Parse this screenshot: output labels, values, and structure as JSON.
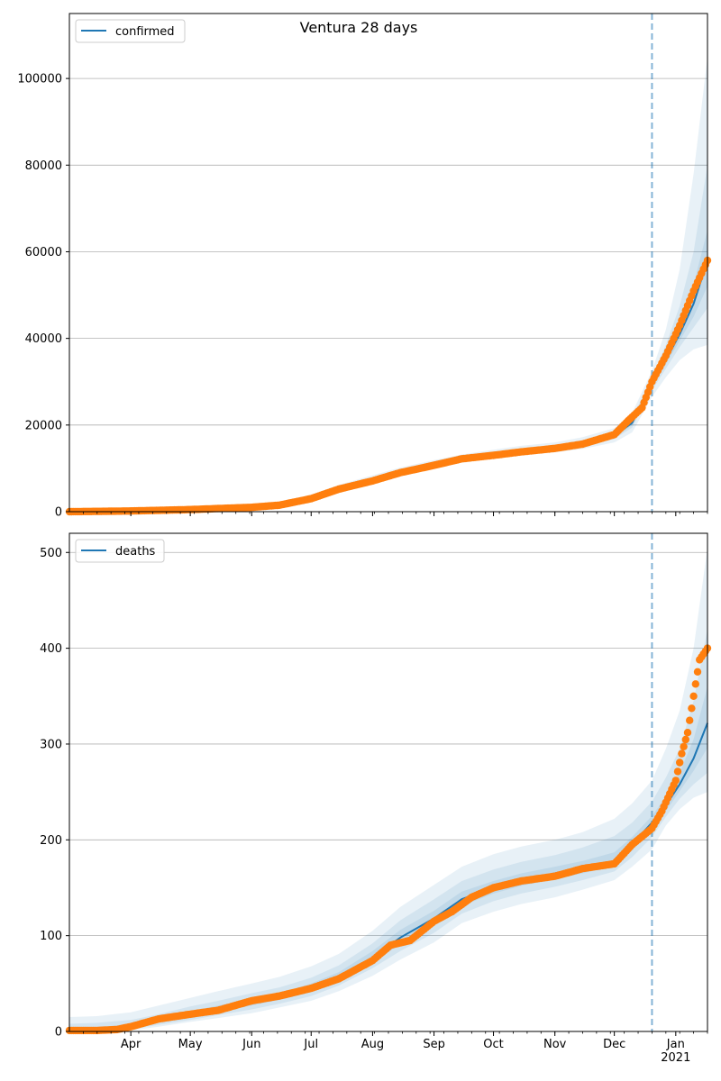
{
  "chart_data": [
    {
      "type": "line",
      "title": "Ventura 28 days",
      "legend": {
        "placement": "top-left",
        "label": "confirmed"
      },
      "grid": "y",
      "ylim": [
        0,
        115000
      ],
      "xlim": [
        "2020-03-01",
        "2021-01-17"
      ],
      "forecast_start": "2020-12-20",
      "yticks": [
        0,
        20000,
        40000,
        60000,
        80000,
        100000
      ],
      "ytick_labels": [
        "0",
        "20000",
        "40000",
        "60000",
        "80000",
        "100000"
      ],
      "colors": {
        "model": "#1f77b4",
        "observed": "#ff7f0e",
        "band": "#1f77b4",
        "forecast_line": "#1f77b4",
        "grid": "#b0b0b0"
      },
      "model": {
        "x": [
          "2020-03-01",
          "2020-03-15",
          "2020-04-01",
          "2020-04-15",
          "2020-05-01",
          "2020-05-15",
          "2020-06-01",
          "2020-06-15",
          "2020-07-01",
          "2020-07-15",
          "2020-08-01",
          "2020-08-15",
          "2020-09-01",
          "2020-09-15",
          "2020-10-01",
          "2020-10-15",
          "2020-11-01",
          "2020-11-15",
          "2020-12-01",
          "2020-12-10",
          "2020-12-20",
          "2020-12-27",
          "2021-01-03",
          "2021-01-10",
          "2021-01-17"
        ],
        "y": [
          0,
          50,
          150,
          280,
          450,
          700,
          1050,
          1700,
          3100,
          5200,
          7300,
          9100,
          10900,
          12200,
          13300,
          14100,
          14800,
          15800,
          17600,
          20500,
          29500,
          35000,
          41000,
          48000,
          58000
        ]
      },
      "bands": [
        {
          "lower": [
            0,
            40,
            120,
            220,
            350,
            520,
            750,
            1200,
            2400,
            4300,
            6300,
            8200,
            10000,
            11300,
            12300,
            13100,
            13700,
            14500,
            16000,
            18300,
            26500,
            31000,
            35000,
            37500,
            38500
          ],
          "upper": [
            0,
            60,
            180,
            350,
            560,
            880,
            1350,
            2250,
            3950,
            6200,
            8400,
            10200,
            11900,
            13200,
            14300,
            15200,
            16000,
            17200,
            19300,
            22800,
            32500,
            42000,
            56000,
            78000,
            105000
          ]
        },
        {
          "lower": [
            0,
            45,
            135,
            250,
            400,
            610,
            900,
            1450,
            2750,
            4750,
            6800,
            8650,
            10450,
            11750,
            12800,
            13600,
            14250,
            15150,
            16800,
            19400,
            28000,
            33000,
            38000,
            42500,
            47000
          ],
          "upper": [
            0,
            55,
            165,
            315,
            505,
            790,
            1200,
            1950,
            3450,
            5650,
            7800,
            9650,
            11350,
            12650,
            13800,
            14650,
            15400,
            16500,
            18450,
            21650,
            31000,
            38500,
            47500,
            60000,
            80000
          ]
        },
        {
          "lower": [
            0,
            48,
            143,
            265,
            425,
            655,
            975,
            1575,
            2925,
            4975,
            7050,
            8875,
            10675,
            11975,
            13050,
            13850,
            14525,
            15475,
            17200,
            19950,
            28800,
            34000,
            39500,
            45000,
            52000
          ],
          "upper": [
            0,
            52,
            158,
            298,
            478,
            748,
            1125,
            1825,
            3275,
            5425,
            7550,
            9325,
            11125,
            12425,
            13550,
            14375,
            15075,
            16150,
            18025,
            21075,
            30200,
            36500,
            43500,
            52500,
            65000
          ]
        }
      ],
      "observed": {
        "x": [
          "2020-03-01",
          "2020-03-15",
          "2020-04-01",
          "2020-04-15",
          "2020-05-01",
          "2020-05-15",
          "2020-06-01",
          "2020-06-15",
          "2020-07-01",
          "2020-07-15",
          "2020-08-01",
          "2020-08-15",
          "2020-09-01",
          "2020-09-15",
          "2020-10-01",
          "2020-10-15",
          "2020-11-01",
          "2020-11-15",
          "2020-12-01",
          "2020-12-08",
          "2020-12-15",
          "2020-12-20",
          "2020-12-27",
          "2021-01-03",
          "2021-01-10",
          "2021-01-17"
        ],
        "y": [
          5,
          60,
          160,
          300,
          480,
          720,
          1000,
          1500,
          3000,
          5200,
          7100,
          9000,
          10700,
          12200,
          13000,
          13800,
          14600,
          15600,
          17800,
          21000,
          24000,
          30000,
          36000,
          43000,
          51000,
          58000
        ]
      }
    },
    {
      "type": "line",
      "legend": {
        "placement": "top-left",
        "label": "deaths"
      },
      "grid": "y",
      "ylim": [
        0,
        520
      ],
      "xlim": [
        "2020-03-01",
        "2021-01-17"
      ],
      "forecast_start": "2020-12-20",
      "yticks": [
        0,
        100,
        200,
        300,
        400,
        500
      ],
      "ytick_labels": [
        "0",
        "100",
        "200",
        "300",
        "400",
        "500"
      ],
      "xticks": [
        "2020-04-01",
        "2020-05-01",
        "2020-06-01",
        "2020-07-01",
        "2020-08-01",
        "2020-09-01",
        "2020-10-01",
        "2020-11-01",
        "2020-12-01",
        "2021-01-01"
      ],
      "xtick_labels": [
        "Apr",
        "May",
        "Jun",
        "Jul",
        "Aug",
        "Sep",
        "Oct",
        "Nov",
        "Dec",
        "Jan"
      ],
      "xtick_year_label": "2021",
      "colors": {
        "model": "#1f77b4",
        "observed": "#ff7f0e",
        "band": "#1f77b4",
        "forecast_line": "#1f77b4",
        "grid": "#b0b0b0"
      },
      "model": {
        "x": [
          "2020-03-01",
          "2020-03-15",
          "2020-04-01",
          "2020-04-15",
          "2020-05-01",
          "2020-05-15",
          "2020-06-01",
          "2020-06-15",
          "2020-07-01",
          "2020-07-15",
          "2020-08-01",
          "2020-08-15",
          "2020-09-01",
          "2020-09-15",
          "2020-10-01",
          "2020-10-15",
          "2020-11-01",
          "2020-11-15",
          "2020-12-01",
          "2020-12-10",
          "2020-12-20",
          "2020-12-27",
          "2021-01-03",
          "2021-01-10",
          "2021-01-17"
        ],
        "y": [
          0,
          1,
          5,
          11,
          17,
          23,
          30,
          36,
          45,
          57,
          77,
          98,
          118,
          138,
          150,
          158,
          165,
          171,
          178,
          195,
          218,
          236,
          258,
          285,
          322
        ]
      },
      "bands": [
        {
          "lower": [
            0,
            0,
            1,
            5,
            10,
            14,
            19,
            25,
            32,
            42,
            58,
            75,
            93,
            113,
            125,
            133,
            140,
            148,
            158,
            172,
            190,
            215,
            232,
            244,
            250
          ],
          "upper": [
            15,
            16,
            20,
            27,
            35,
            42,
            50,
            57,
            68,
            81,
            105,
            130,
            153,
            172,
            185,
            193,
            200,
            208,
            222,
            238,
            262,
            295,
            335,
            400,
            505
          ]
        },
        {
          "lower": [
            0,
            0,
            2,
            7,
            12,
            17,
            23,
            29,
            37,
            48,
            66,
            84,
            103,
            123,
            136,
            144,
            151,
            158,
            167,
            182,
            203,
            224,
            243,
            258,
            270
          ],
          "upper": [
            8,
            9,
            12,
            18,
            26,
            32,
            40,
            46,
            56,
            69,
            92,
            116,
            138,
            157,
            169,
            177,
            184,
            192,
            204,
            218,
            240,
            265,
            295,
            345,
            420
          ]
        },
        {
          "lower": [
            0,
            0,
            3,
            9,
            14,
            20,
            27,
            33,
            41,
            53,
            72,
            91,
            111,
            131,
            144,
            152,
            159,
            165,
            173,
            189,
            212,
            230,
            251,
            272,
            296
          ],
          "upper": [
            3,
            4,
            8,
            14,
            21,
            27,
            34,
            40,
            50,
            62,
            84,
            106,
            126,
            146,
            157,
            165,
            172,
            178,
            187,
            203,
            225,
            245,
            270,
            305,
            360
          ]
        }
      ],
      "observed": {
        "x": [
          "2020-03-01",
          "2020-03-15",
          "2020-03-25",
          "2020-04-01",
          "2020-04-15",
          "2020-05-01",
          "2020-05-15",
          "2020-06-01",
          "2020-06-15",
          "2020-07-01",
          "2020-07-15",
          "2020-08-01",
          "2020-08-10",
          "2020-08-20",
          "2020-09-01",
          "2020-09-10",
          "2020-09-20",
          "2020-10-01",
          "2020-10-15",
          "2020-11-01",
          "2020-11-15",
          "2020-12-01",
          "2020-12-10",
          "2020-12-20",
          "2020-12-25",
          "2021-01-01",
          "2021-01-04",
          "2021-01-07",
          "2021-01-10",
          "2021-01-13",
          "2021-01-17"
        ],
        "y": [
          1,
          1,
          2,
          5,
          13,
          18,
          22,
          32,
          37,
          45,
          55,
          74,
          90,
          95,
          115,
          125,
          140,
          150,
          157,
          162,
          170,
          175,
          195,
          212,
          230,
          262,
          290,
          312,
          350,
          388,
          400
        ]
      }
    }
  ]
}
